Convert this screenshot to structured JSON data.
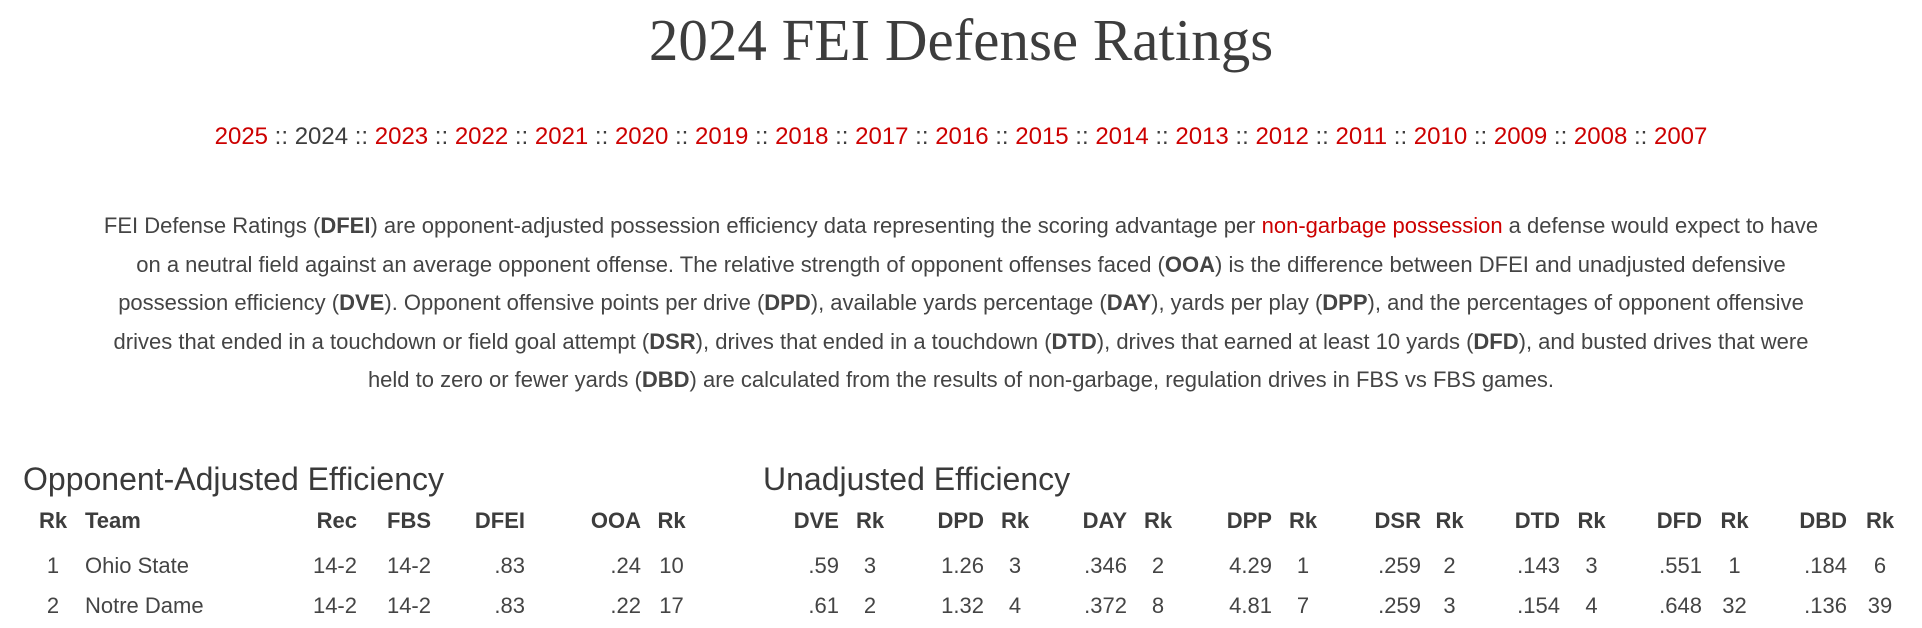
{
  "page": {
    "title": "2024 FEI Defense Ratings"
  },
  "year_nav": {
    "current": "2024",
    "separator": " :: ",
    "years": [
      "2025",
      "2024",
      "2023",
      "2022",
      "2021",
      "2020",
      "2019",
      "2018",
      "2017",
      "2016",
      "2015",
      "2014",
      "2013",
      "2012",
      "2011",
      "2010",
      "2009",
      "2008",
      "2007"
    ]
  },
  "intro": {
    "lines": [
      [
        {
          "t": "FEI Defense Ratings (",
          "s": "n"
        },
        {
          "t": "DFEI",
          "s": "b"
        },
        {
          "t": ") are opponent-adjusted possession efficiency data representing the scoring advantage per ",
          "s": "n"
        },
        {
          "t": "non-garbage possession",
          "s": "l"
        },
        {
          "t": " a defense would expect to have",
          "s": "n"
        }
      ],
      [
        {
          "t": "on a neutral field against an average opponent offense. The relative strength of opponent offenses faced (",
          "s": "n"
        },
        {
          "t": "OOA",
          "s": "b"
        },
        {
          "t": ") is the difference between DFEI and unadjusted defensive",
          "s": "n"
        }
      ],
      [
        {
          "t": "possession efficiency (",
          "s": "n"
        },
        {
          "t": "DVE",
          "s": "b"
        },
        {
          "t": "). Opponent offensive points per drive (",
          "s": "n"
        },
        {
          "t": "DPD",
          "s": "b"
        },
        {
          "t": "), available yards percentage (",
          "s": "n"
        },
        {
          "t": "DAY",
          "s": "b"
        },
        {
          "t": "), yards per play (",
          "s": "n"
        },
        {
          "t": "DPP",
          "s": "b"
        },
        {
          "t": "), and the percentages of opponent offensive",
          "s": "n"
        }
      ],
      [
        {
          "t": "drives that ended in a touchdown or field goal attempt (",
          "s": "n"
        },
        {
          "t": "DSR",
          "s": "b"
        },
        {
          "t": "), drives that ended in a touchdown (",
          "s": "n"
        },
        {
          "t": "DTD",
          "s": "b"
        },
        {
          "t": "), drives that earned at least 10 yards (",
          "s": "n"
        },
        {
          "t": "DFD",
          "s": "b"
        },
        {
          "t": "), and busted drives that were",
          "s": "n"
        }
      ],
      [
        {
          "t": "held to zero or fewer yards (",
          "s": "n"
        },
        {
          "t": "DBD",
          "s": "b"
        },
        {
          "t": ") are calculated from the results of non-garbage, regulation drives in FBS vs FBS games.",
          "s": "n"
        }
      ]
    ]
  },
  "sections": {
    "adjusted_title": "Opponent-Adjusted Efficiency",
    "unadjusted_title": "Unadjusted Efficiency"
  },
  "table": {
    "columns": [
      "Rk",
      "Team",
      "Rec",
      "FBS",
      "DFEI",
      "OOA",
      "Rk",
      "DVE",
      "Rk",
      "DPD",
      "Rk",
      "DAY",
      "Rk",
      "DPP",
      "Rk",
      "DSR",
      "Rk",
      "DTD",
      "Rk",
      "DFD",
      "Rk",
      "DBD",
      "Rk"
    ],
    "rows": [
      [
        "1",
        "Ohio State",
        "14-2",
        "14-2",
        ".83",
        ".24",
        "10",
        ".59",
        "3",
        "1.26",
        "3",
        ".346",
        "2",
        "4.29",
        "1",
        ".259",
        "2",
        ".143",
        "3",
        ".551",
        "1",
        ".184",
        "6"
      ],
      [
        "2",
        "Notre Dame",
        "14-2",
        "14-2",
        ".83",
        ".22",
        "17",
        ".61",
        "2",
        "1.32",
        "4",
        ".372",
        "8",
        "4.81",
        "7",
        ".259",
        "3",
        ".154",
        "4",
        ".648",
        "32",
        ".136",
        "39"
      ]
    ]
  },
  "colors": {
    "link_red": "#cc0000",
    "heading_gray": "#3d3d3d",
    "body_text": "#444444"
  }
}
